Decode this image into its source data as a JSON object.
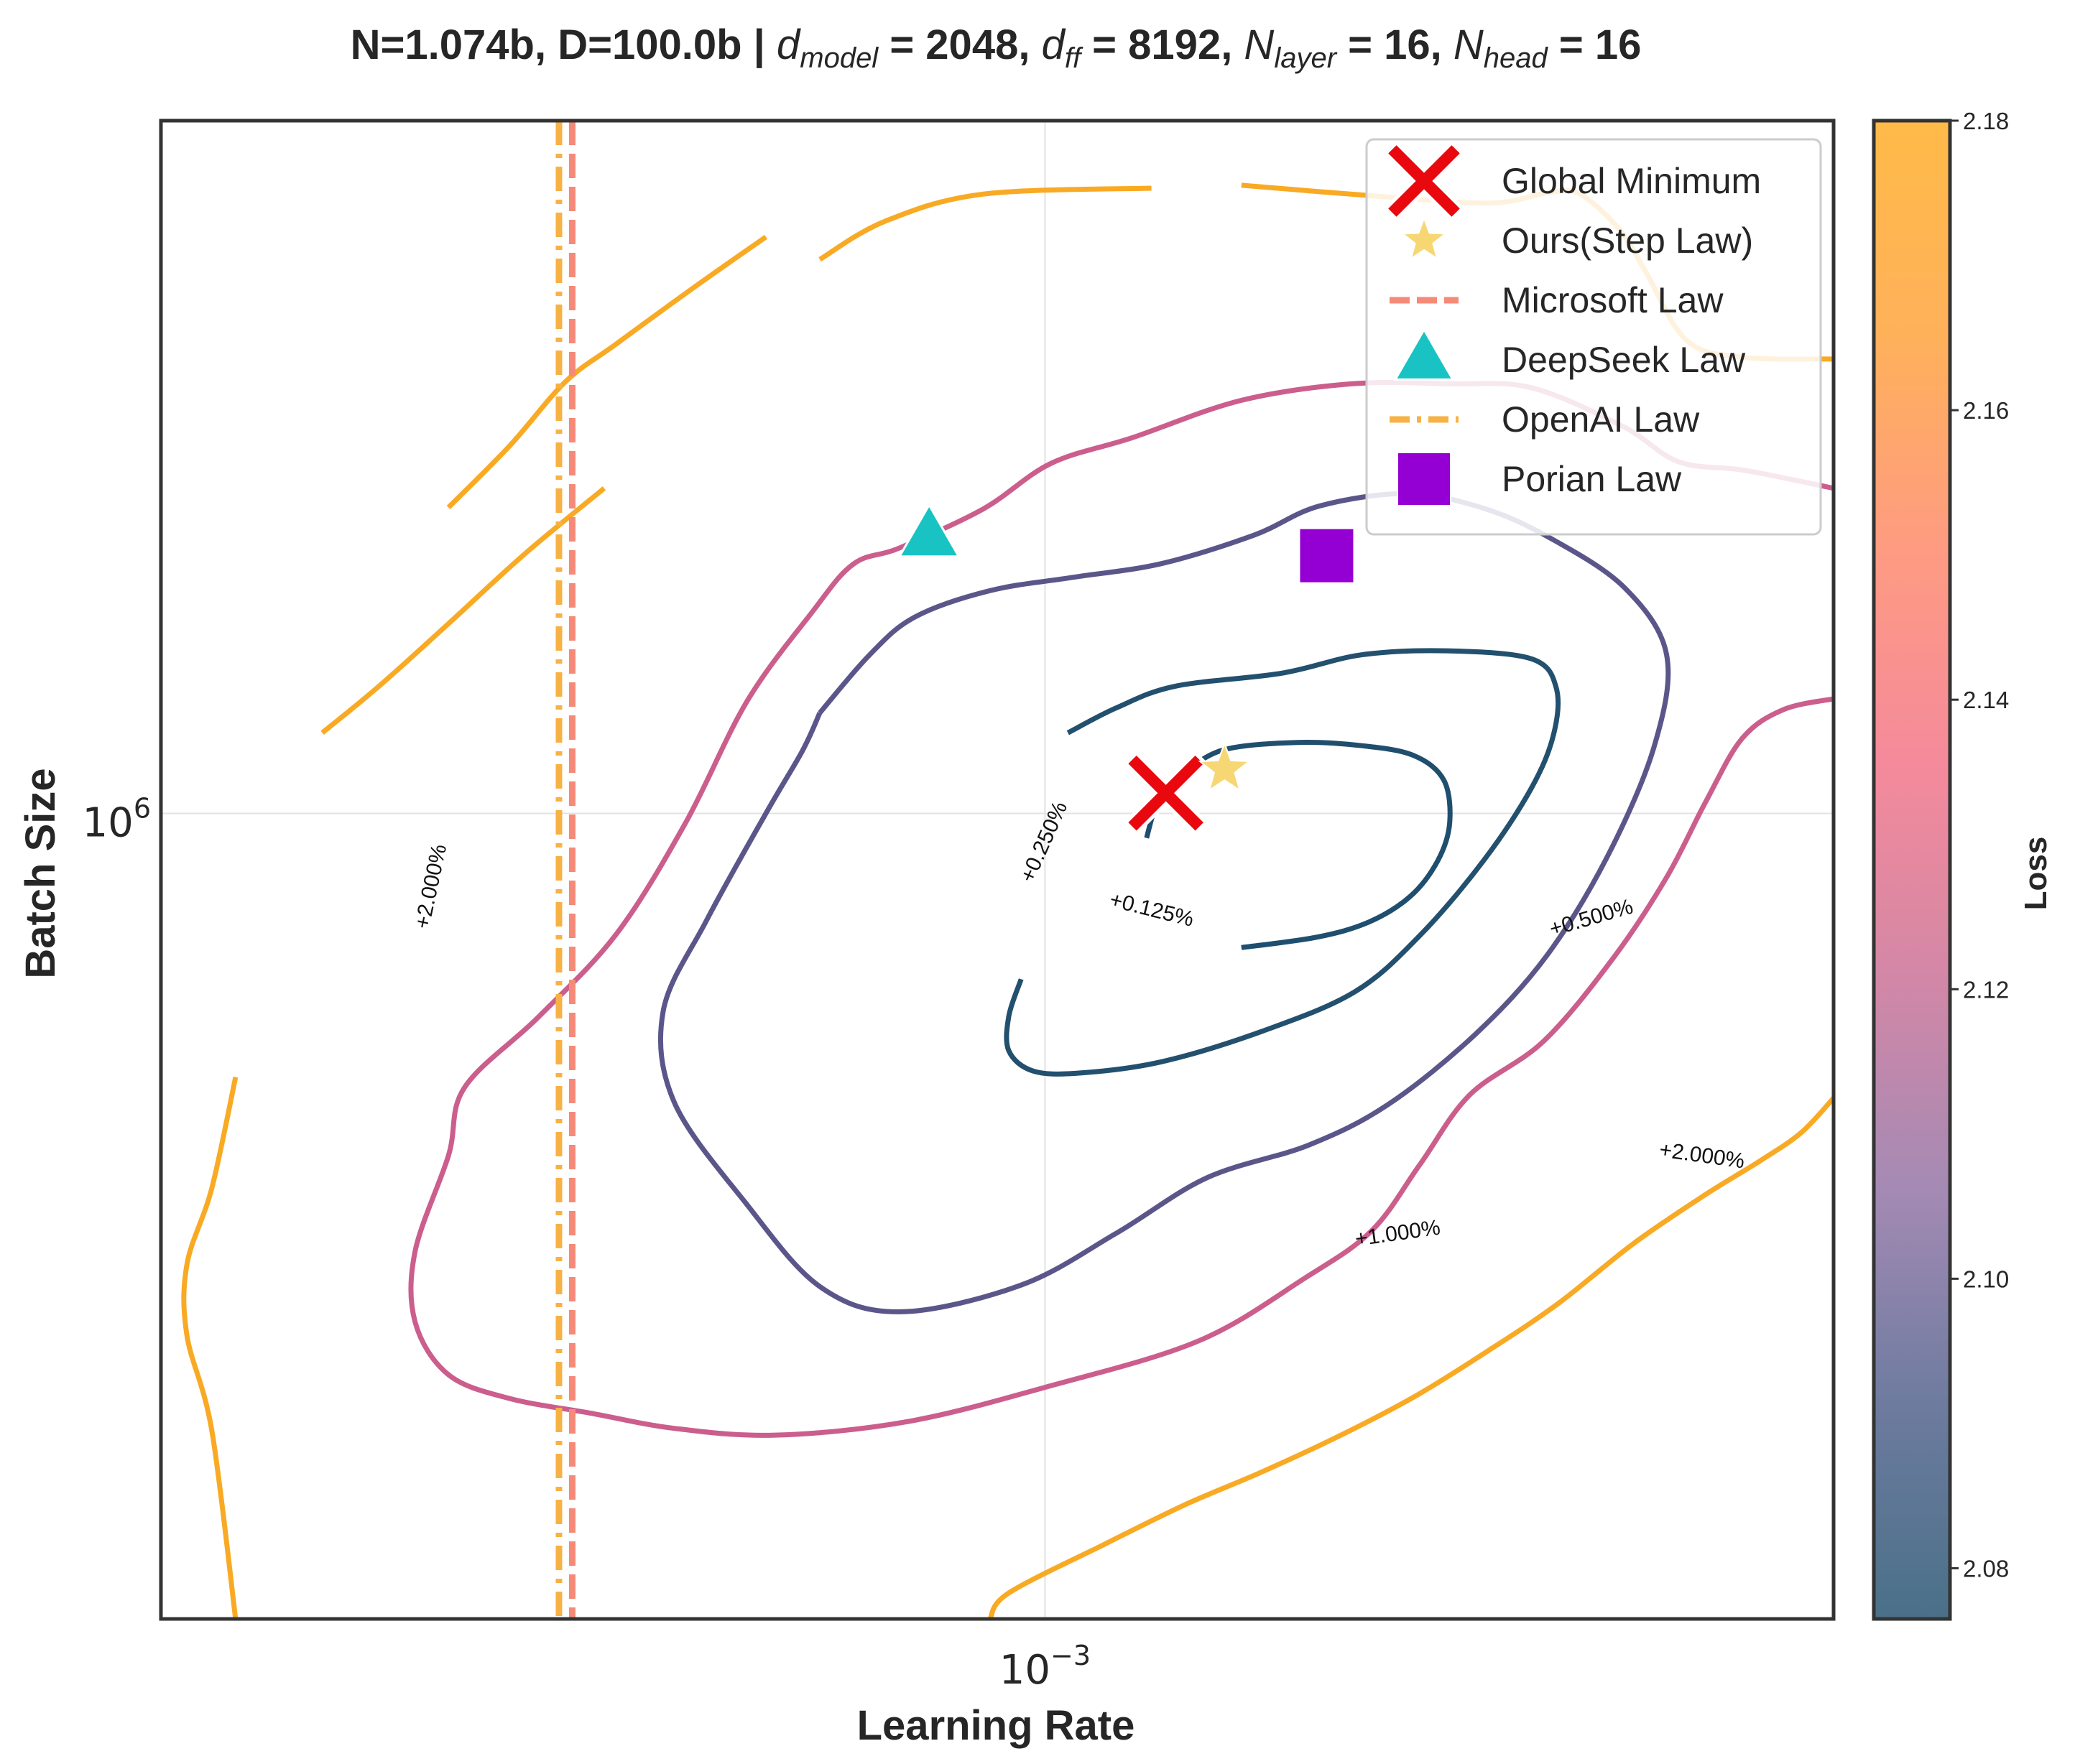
{
  "chart_data": {
    "type": "contour",
    "title": {
      "prefix": "N=1.074b, D=100.0b | ",
      "parts": [
        {
          "math": "d",
          "sub": "model",
          "rest": " = 2048, "
        },
        {
          "math": "d",
          "sub": "ff",
          "rest": " = 8192, "
        },
        {
          "math": "N",
          "sub": "layer",
          "rest": " = 16, "
        },
        {
          "math": "N",
          "sub": "head",
          "rest": " = 16"
        }
      ]
    },
    "xlabel": "Learning Rate",
    "ylabel": "Batch Size",
    "xscale": "log",
    "yscale": "log",
    "xlim": [
      0.00022,
      0.00386
    ],
    "ylim": [
      322000,
      2650000
    ],
    "grid": true,
    "x_ticks": [
      {
        "value": 0.001,
        "base": "10",
        "exp": "−3"
      }
    ],
    "y_ticks": [
      {
        "value": 1000000,
        "base": "10",
        "exp": "6"
      }
    ],
    "contour_levels": [
      {
        "label": "+0.125%",
        "loss": 2.0786,
        "color": "#1f4e6e",
        "segments": [
          [
            [
              0.00119,
              966000
            ],
            [
              0.00121,
              1012000
            ],
            [
              0.00124,
              1042000
            ],
            [
              0.00127,
              1060000
            ],
            [
              0.00136,
              1094000
            ],
            [
              0.00154,
              1105000
            ],
            [
              0.00172,
              1100000
            ],
            [
              0.00188,
              1085000
            ],
            [
              0.00198,
              1048000
            ],
            [
              0.002,
              987000
            ],
            [
              0.00196,
              936000
            ],
            [
              0.00187,
              890000
            ],
            [
              0.00174,
              858000
            ],
            [
              0.00159,
              840000
            ],
            [
              0.0014,
              828000
            ]
          ]
        ]
      },
      {
        "label": "+0.250%",
        "loss": 2.0813,
        "color": "#22506e",
        "segments": [
          [
            [
              0.00104,
              1120000
            ],
            [
              0.00113,
              1160000
            ],
            [
              0.00125,
              1196000
            ],
            [
              0.0015,
              1218000
            ],
            [
              0.00172,
              1250000
            ],
            [
              0.00199,
              1257000
            ],
            [
              0.0023,
              1243000
            ],
            [
              0.0024,
              1194000
            ],
            [
              0.00239,
              1118000
            ],
            [
              0.0023,
              1036000
            ],
            [
              0.00212,
              936000
            ],
            [
              0.0019,
              842000
            ],
            [
              0.0017,
              778000
            ],
            [
              0.00145,
              736000
            ],
            [
              0.00122,
              705000
            ],
            [
              0.00106,
              694000
            ],
            [
              0.00098,
              696000
            ],
            [
              0.00094,
              716000
            ],
            [
              0.00094,
              752000
            ],
            [
              0.00096,
              792000
            ]
          ]
        ]
      },
      {
        "label": "+0.500%",
        "loss": 2.0867,
        "color": "#5b568a",
        "segments": [
          [
            [
              0.00068,
              1152000
            ],
            [
              0.00074,
              1249000
            ],
            [
              0.0008,
              1318000
            ],
            [
              0.00091,
              1368000
            ],
            [
              0.00105,
              1394000
            ],
            [
              0.00122,
              1421000
            ],
            [
              0.00143,
              1479000
            ],
            [
              0.0016,
              1541000
            ],
            [
              0.00186,
              1568000
            ],
            [
              0.00212,
              1536000
            ],
            [
              0.00238,
              1472000
            ],
            [
              0.0027,
              1373000
            ],
            [
              0.0029,
              1250000
            ],
            [
              0.00284,
              1100000
            ],
            [
              0.00262,
              941000
            ],
            [
              0.00236,
              818000
            ],
            [
              0.00209,
              733000
            ],
            [
              0.0018,
              664000
            ],
            [
              0.00157,
              627000
            ],
            [
              0.00132,
              599000
            ],
            [
              0.00113,
              554000
            ],
            [
              0.00096,
              515000
            ],
            [
              0.00078,
              496000
            ],
            [
              0.00068,
              514000
            ],
            [
              0.0006,
              577000
            ],
            [
              0.00053,
              666000
            ],
            [
              0.00052,
              757000
            ],
            [
              0.00056,
              860000
            ],
            [
              0.00062,
              1000000
            ],
            [
              0.00066,
              1092000
            ],
            [
              0.00068,
              1152000
            ]
          ]
        ]
      },
      {
        "label": "+1.000%",
        "loss": 2.0975,
        "color": "#cb5e8d",
        "segments": [
          [
            [
              0.00386,
              1175000
            ],
            [
              0.00354,
              1157000
            ],
            [
              0.0033,
              1111000
            ],
            [
              0.0031,
              1016000
            ],
            [
              0.0029,
              914000
            ],
            [
              0.00265,
              817000
            ],
            [
              0.00235,
              726000
            ],
            [
              0.00207,
              673000
            ],
            [
              0.0019,
              610000
            ],
            [
              0.00175,
              556000
            ],
            [
              0.00156,
              520000
            ],
            [
              0.0013,
              476000
            ],
            [
              0.001,
              446000
            ],
            [
              0.00079,
              425000
            ],
            [
              0.00063,
              417000
            ],
            [
              0.00053,
              421000
            ],
            [
              0.00046,
              430000
            ],
            [
              0.0004,
              439000
            ],
            [
              0.00036,
              454000
            ],
            [
              0.00034,
              489000
            ],
            [
              0.00034,
              540000
            ],
            [
              0.00036,
              618000
            ],
            [
              0.00037,
              680000
            ],
            [
              0.00042,
              751000
            ],
            [
              0.00048,
              844000
            ],
            [
              0.00054,
              986000
            ],
            [
              0.0006,
              1170000
            ],
            [
              0.00067,
              1325000
            ],
            [
              0.00072,
              1420000
            ],
            [
              0.00078,
              1453000
            ],
            [
              0.0009,
              1535000
            ],
            [
              0.00101,
              1636000
            ],
            [
              0.00116,
              1696000
            ],
            [
              0.0014,
              1788000
            ],
            [
              0.00169,
              1830000
            ],
            [
              0.002,
              1830000
            ],
            [
              0.0023,
              1820000
            ],
            [
              0.00269,
              1724000
            ],
            [
              0.00296,
              1640000
            ],
            [
              0.00332,
              1620000
            ],
            [
              0.00386,
              1580000
            ]
          ]
        ]
      },
      {
        "label": "+2.000%",
        "loss": 2.119,
        "color": "#f9aa24",
        "segments": [
          [
            [
              0.00047,
              1580000
            ],
            [
              0.00041,
              1440000
            ],
            [
              0.00036,
              1306000
            ],
            [
              0.00032,
              1197000
            ],
            [
              0.00029,
              1120000
            ]
          ],
          [
            [
              0.00062,
              2250000
            ],
            [
              0.00055,
              2100000
            ],
            [
              0.00048,
              1936000
            ],
            [
              0.00044,
              1836000
            ],
            [
              0.0004,
              1678000
            ],
            [
              0.00036,
              1538000
            ]
          ],
          [
            [
              0.0012,
              2410000
            ],
            [
              0.0009,
              2390000
            ],
            [
              0.00076,
              2300000
            ],
            [
              0.00068,
              2180000
            ]
          ],
          [
            [
              0.00386,
              1895000
            ],
            [
              0.0033,
              1900000
            ],
            [
              0.003,
              1946000
            ],
            [
              0.0028,
              2140000
            ],
            [
              0.00268,
              2270000
            ],
            [
              0.0025,
              2390000
            ],
            [
              0.00237,
              2395000
            ],
            [
              0.00215,
              2360000
            ],
            [
              0.0018,
              2380000
            ],
            [
              0.0014,
              2420000
            ]
          ],
          [
            [
              0.00025,
              690000
            ],
            [
              0.00024,
              590000
            ],
            [
              0.00023,
              530000
            ],
            [
              0.00023,
              480000
            ],
            [
              0.00024,
              420000
            ],
            [
              0.00025,
              322000
            ]
          ],
          [
            [
              0.00091,
              322000
            ],
            [
              0.00094,
              334000
            ],
            [
              0.00111,
              358000
            ],
            [
              0.00127,
              378000
            ],
            [
              0.00145,
              396000
            ],
            [
              0.00166,
              417000
            ],
            [
              0.00189,
              441000
            ],
            [
              0.00214,
              470000
            ],
            [
              0.00241,
              502000
            ],
            [
              0.00274,
              546000
            ],
            [
              0.0031,
              585000
            ],
            [
              0.0034,
              613000
            ],
            [
              0.00365,
              638000
            ],
            [
              0.00386,
              670000
            ]
          ]
        ]
      }
    ],
    "contour_label_positions": [
      {
        "level": "+0.125%",
        "x": 0.0012,
        "y": 872000,
        "angle": 14
      },
      {
        "level": "+0.250%",
        "x": 0.001,
        "y": 960000,
        "angle": -66
      },
      {
        "level": "+0.500%",
        "x": 0.00255,
        "y": 862000,
        "angle": -16
      },
      {
        "level": "+1.000%",
        "x": 0.00183,
        "y": 553000,
        "angle": -8
      },
      {
        "level": "+2.000%",
        "x": 0.00308,
        "y": 617000,
        "angle": 8
      },
      {
        "level": "+2.000%",
        "x": 0.00035,
        "y": 902000,
        "angle": -78
      }
    ],
    "vertical_lines": [
      {
        "name": "Microsoft Law",
        "x": 0.000445,
        "color": "#f58a78",
        "style": "dashed"
      },
      {
        "name": "OpenAI Law",
        "x": 0.000435,
        "color": "#f7b245",
        "style": "dashdot"
      }
    ],
    "points": [
      {
        "name": "Global Minimum",
        "x": 0.00123,
        "y": 1029000,
        "marker": "x",
        "color": "#e8080e"
      },
      {
        "name": "Ours(Step Law)",
        "x": 0.00136,
        "y": 1064000,
        "marker": "star",
        "color": "#f7d774"
      },
      {
        "name": "DeepSeek Law",
        "x": 0.00082,
        "y": 1477000,
        "marker": "triangle",
        "color": "#19c3c3"
      },
      {
        "name": "Porian Law",
        "x": 0.00162,
        "y": 1437000,
        "marker": "square",
        "color": "#9400d3"
      }
    ],
    "legend": {
      "position": "upper right",
      "entries": [
        "Global Minimum",
        "Ours(Step Law)",
        "Microsoft Law",
        "DeepSeek Law",
        "OpenAI Law",
        "Porian Law"
      ]
    },
    "colorbar": {
      "label": "Loss",
      "min": 2.0765,
      "max": 2.18,
      "ticks": [
        "2.08",
        "2.10",
        "2.12",
        "2.14",
        "2.16",
        "2.18"
      ],
      "colormap": [
        "#4a7088",
        "#6d7b9f",
        "#a48ab4",
        "#d387a6",
        "#f48a9b",
        "#fe9b82",
        "#ffb15a",
        "#ffba48"
      ]
    }
  }
}
